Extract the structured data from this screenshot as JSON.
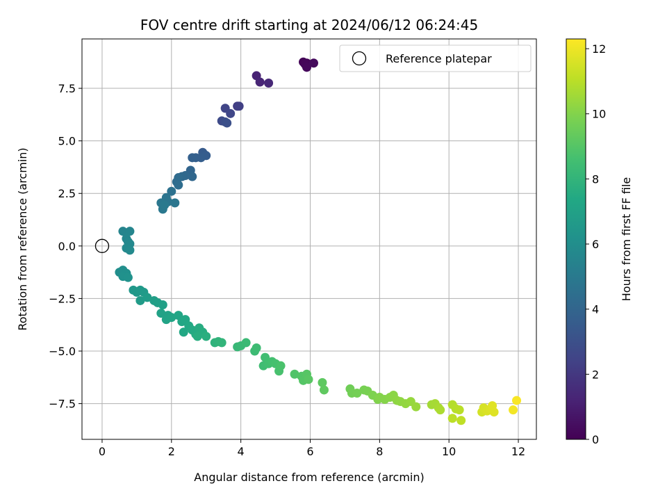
{
  "chart_data": {
    "type": "scatter",
    "title": "FOV centre drift starting at 2024/06/12 06:24:45",
    "xlabel": "Angular distance from reference (arcmin)",
    "ylabel": "Rotation from reference (arcmin)",
    "xlim": [
      -0.58,
      12.52
    ],
    "ylim": [
      -9.2,
      9.85
    ],
    "xticks": [
      0,
      2,
      4,
      6,
      8,
      10,
      12
    ],
    "xtick_labels": [
      "0",
      "2",
      "4",
      "6",
      "8",
      "10",
      "12"
    ],
    "yticks": [
      -7.5,
      -5.0,
      -2.5,
      0.0,
      2.5,
      5.0,
      7.5
    ],
    "ytick_labels": [
      "−7.5",
      "−5.0",
      "−2.5",
      "0.0",
      "2.5",
      "5.0",
      "7.5"
    ],
    "grid": true,
    "legend": {
      "placement": "top-right",
      "entries": [
        "Reference platepar"
      ]
    },
    "reference": {
      "x": 0,
      "y": 0,
      "marker": "open-circle",
      "label": "Reference platepar"
    },
    "colormap": "viridis",
    "colorbar": {
      "label": "Hours from first FF file",
      "min": 0,
      "max": 12.3,
      "ticks": [
        0,
        2,
        4,
        6,
        8,
        10,
        12
      ],
      "tick_labels": [
        "0",
        "2",
        "4",
        "6",
        "8",
        "10",
        "12"
      ]
    },
    "series": [
      {
        "name": "",
        "points": [
          {
            "x": 5.8,
            "y": 8.75,
            "t": 0.1
          },
          {
            "x": 5.9,
            "y": 8.7,
            "t": 0.15
          },
          {
            "x": 5.85,
            "y": 8.65,
            "t": 0.2
          },
          {
            "x": 5.9,
            "y": 8.5,
            "t": 0.25
          },
          {
            "x": 6.1,
            "y": 8.7,
            "t": 0.3
          },
          {
            "x": 4.45,
            "y": 8.1,
            "t": 1.2
          },
          {
            "x": 4.55,
            "y": 7.8,
            "t": 1.3
          },
          {
            "x": 4.8,
            "y": 7.75,
            "t": 1.4
          },
          {
            "x": 3.9,
            "y": 6.65,
            "t": 2.2
          },
          {
            "x": 3.95,
            "y": 6.65,
            "t": 2.3
          },
          {
            "x": 3.55,
            "y": 6.55,
            "t": 2.5
          },
          {
            "x": 3.7,
            "y": 6.3,
            "t": 2.6
          },
          {
            "x": 3.45,
            "y": 5.95,
            "t": 2.8
          },
          {
            "x": 3.55,
            "y": 5.9,
            "t": 2.9
          },
          {
            "x": 3.6,
            "y": 5.85,
            "t": 3.0
          },
          {
            "x": 2.9,
            "y": 4.45,
            "t": 3.5
          },
          {
            "x": 2.95,
            "y": 4.35,
            "t": 3.55
          },
          {
            "x": 3.0,
            "y": 4.3,
            "t": 3.6
          },
          {
            "x": 2.85,
            "y": 4.2,
            "t": 3.65
          },
          {
            "x": 2.7,
            "y": 4.2,
            "t": 3.7
          },
          {
            "x": 2.6,
            "y": 4.2,
            "t": 3.75
          },
          {
            "x": 2.55,
            "y": 3.6,
            "t": 4.0
          },
          {
            "x": 2.6,
            "y": 3.3,
            "t": 4.1
          },
          {
            "x": 2.4,
            "y": 3.35,
            "t": 4.15
          },
          {
            "x": 2.3,
            "y": 3.3,
            "t": 4.2
          },
          {
            "x": 2.2,
            "y": 3.25,
            "t": 4.3
          },
          {
            "x": 2.15,
            "y": 3.05,
            "t": 4.35
          },
          {
            "x": 2.2,
            "y": 2.9,
            "t": 4.4
          },
          {
            "x": 2.0,
            "y": 2.6,
            "t": 4.6
          },
          {
            "x": 1.85,
            "y": 2.3,
            "t": 4.7
          },
          {
            "x": 1.9,
            "y": 2.1,
            "t": 4.75
          },
          {
            "x": 2.1,
            "y": 2.05,
            "t": 4.8
          },
          {
            "x": 1.7,
            "y": 2.05,
            "t": 4.85
          },
          {
            "x": 1.75,
            "y": 1.75,
            "t": 4.9
          },
          {
            "x": 1.8,
            "y": 1.95,
            "t": 4.95
          },
          {
            "x": 0.6,
            "y": 0.7,
            "t": 5.5
          },
          {
            "x": 0.8,
            "y": 0.7,
            "t": 5.55
          },
          {
            "x": 0.7,
            "y": 0.35,
            "t": 5.6
          },
          {
            "x": 0.75,
            "y": 0.2,
            "t": 5.65
          },
          {
            "x": 0.8,
            "y": 0.1,
            "t": 5.7
          },
          {
            "x": 0.7,
            "y": -0.1,
            "t": 5.75
          },
          {
            "x": 0.8,
            "y": -0.2,
            "t": 5.8
          },
          {
            "x": 0.5,
            "y": -1.25,
            "t": 6.0
          },
          {
            "x": 0.6,
            "y": -1.15,
            "t": 6.05
          },
          {
            "x": 0.7,
            "y": -1.3,
            "t": 6.1
          },
          {
            "x": 0.6,
            "y": -1.45,
            "t": 6.15
          },
          {
            "x": 0.75,
            "y": -1.5,
            "t": 6.2
          },
          {
            "x": 0.9,
            "y": -2.1,
            "t": 6.5
          },
          {
            "x": 1.0,
            "y": -2.2,
            "t": 6.55
          },
          {
            "x": 1.1,
            "y": -2.1,
            "t": 6.6
          },
          {
            "x": 1.2,
            "y": -2.2,
            "t": 6.65
          },
          {
            "x": 1.1,
            "y": -2.6,
            "t": 6.7
          },
          {
            "x": 1.3,
            "y": -2.45,
            "t": 6.75
          },
          {
            "x": 1.5,
            "y": -2.6,
            "t": 6.85
          },
          {
            "x": 1.6,
            "y": -2.7,
            "t": 6.9
          },
          {
            "x": 1.75,
            "y": -2.8,
            "t": 6.95
          },
          {
            "x": 1.7,
            "y": -3.2,
            "t": 7.0
          },
          {
            "x": 1.9,
            "y": -3.3,
            "t": 7.05
          },
          {
            "x": 1.85,
            "y": -3.5,
            "t": 7.1
          },
          {
            "x": 2.0,
            "y": -3.4,
            "t": 7.15
          },
          {
            "x": 2.2,
            "y": -3.3,
            "t": 7.2
          },
          {
            "x": 2.3,
            "y": -3.6,
            "t": 7.25
          },
          {
            "x": 2.4,
            "y": -3.5,
            "t": 7.3
          },
          {
            "x": 2.35,
            "y": -4.1,
            "t": 7.35
          },
          {
            "x": 2.5,
            "y": -3.8,
            "t": 7.4
          },
          {
            "x": 2.6,
            "y": -4.0,
            "t": 7.45
          },
          {
            "x": 2.7,
            "y": -4.2,
            "t": 7.5
          },
          {
            "x": 2.8,
            "y": -3.9,
            "t": 7.55
          },
          {
            "x": 2.9,
            "y": -4.1,
            "t": 7.6
          },
          {
            "x": 2.75,
            "y": -4.3,
            "t": 7.65
          },
          {
            "x": 3.0,
            "y": -4.3,
            "t": 7.7
          },
          {
            "x": 3.25,
            "y": -4.6,
            "t": 7.9
          },
          {
            "x": 3.35,
            "y": -4.55,
            "t": 7.95
          },
          {
            "x": 3.45,
            "y": -4.6,
            "t": 8.0
          },
          {
            "x": 3.9,
            "y": -4.8,
            "t": 8.2
          },
          {
            "x": 4.0,
            "y": -4.75,
            "t": 8.25
          },
          {
            "x": 4.15,
            "y": -4.6,
            "t": 8.3
          },
          {
            "x": 4.4,
            "y": -5.0,
            "t": 8.35
          },
          {
            "x": 4.45,
            "y": -4.85,
            "t": 8.4
          },
          {
            "x": 4.65,
            "y": -5.7,
            "t": 8.45
          },
          {
            "x": 4.7,
            "y": -5.3,
            "t": 8.5
          },
          {
            "x": 4.8,
            "y": -5.6,
            "t": 8.55
          },
          {
            "x": 4.9,
            "y": -5.5,
            "t": 8.6
          },
          {
            "x": 5.0,
            "y": -5.6,
            "t": 8.65
          },
          {
            "x": 5.1,
            "y": -5.95,
            "t": 8.7
          },
          {
            "x": 5.15,
            "y": -5.7,
            "t": 8.75
          },
          {
            "x": 5.55,
            "y": -6.1,
            "t": 8.9
          },
          {
            "x": 5.75,
            "y": -6.2,
            "t": 8.95
          },
          {
            "x": 5.8,
            "y": -6.4,
            "t": 9.0
          },
          {
            "x": 5.9,
            "y": -6.1,
            "t": 9.05
          },
          {
            "x": 5.95,
            "y": -6.35,
            "t": 9.1
          },
          {
            "x": 6.35,
            "y": -6.5,
            "t": 9.2
          },
          {
            "x": 6.4,
            "y": -6.85,
            "t": 9.25
          },
          {
            "x": 7.15,
            "y": -6.8,
            "t": 9.6
          },
          {
            "x": 7.2,
            "y": -7.0,
            "t": 9.65
          },
          {
            "x": 7.35,
            "y": -7.0,
            "t": 9.7
          },
          {
            "x": 7.55,
            "y": -6.85,
            "t": 9.75
          },
          {
            "x": 7.65,
            "y": -6.9,
            "t": 9.8
          },
          {
            "x": 7.8,
            "y": -7.1,
            "t": 9.9
          },
          {
            "x": 7.95,
            "y": -7.3,
            "t": 9.95
          },
          {
            "x": 8.0,
            "y": -7.2,
            "t": 10.0
          },
          {
            "x": 8.15,
            "y": -7.3,
            "t": 10.05
          },
          {
            "x": 8.3,
            "y": -7.2,
            "t": 10.1
          },
          {
            "x": 8.4,
            "y": -7.1,
            "t": 10.15
          },
          {
            "x": 8.5,
            "y": -7.35,
            "t": 10.2
          },
          {
            "x": 8.6,
            "y": -7.4,
            "t": 10.25
          },
          {
            "x": 8.75,
            "y": -7.5,
            "t": 10.3
          },
          {
            "x": 8.9,
            "y": -7.4,
            "t": 10.35
          },
          {
            "x": 9.05,
            "y": -7.65,
            "t": 10.4
          },
          {
            "x": 9.5,
            "y": -7.55,
            "t": 10.6
          },
          {
            "x": 9.6,
            "y": -7.5,
            "t": 10.65
          },
          {
            "x": 9.7,
            "y": -7.7,
            "t": 10.7
          },
          {
            "x": 9.75,
            "y": -7.8,
            "t": 10.75
          },
          {
            "x": 10.1,
            "y": -7.55,
            "t": 10.9
          },
          {
            "x": 10.2,
            "y": -7.75,
            "t": 10.95
          },
          {
            "x": 10.3,
            "y": -7.8,
            "t": 11.0
          },
          {
            "x": 10.1,
            "y": -8.2,
            "t": 11.05
          },
          {
            "x": 10.35,
            "y": -8.3,
            "t": 11.1
          },
          {
            "x": 10.95,
            "y": -7.9,
            "t": 11.5
          },
          {
            "x": 11.0,
            "y": -7.7,
            "t": 11.55
          },
          {
            "x": 11.1,
            "y": -7.85,
            "t": 11.6
          },
          {
            "x": 11.2,
            "y": -7.75,
            "t": 11.65
          },
          {
            "x": 11.3,
            "y": -7.9,
            "t": 11.7
          },
          {
            "x": 11.25,
            "y": -7.6,
            "t": 11.75
          },
          {
            "x": 11.85,
            "y": -7.8,
            "t": 12.1
          },
          {
            "x": 11.95,
            "y": -7.35,
            "t": 12.2
          }
        ]
      }
    ]
  }
}
